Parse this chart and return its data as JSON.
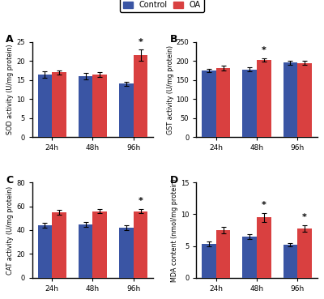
{
  "panels": [
    {
      "label": "A",
      "ylabel": "SOD activity (U/mg protein)",
      "ylim": [
        0,
        25
      ],
      "yticks": [
        0,
        5,
        10,
        15,
        20,
        25
      ],
      "groups": [
        "24h",
        "48h",
        "96h"
      ],
      "control_means": [
        16.5,
        16.0,
        14.0
      ],
      "control_errs": [
        0.8,
        0.9,
        0.5
      ],
      "oa_means": [
        17.0,
        16.5,
        21.5
      ],
      "oa_errs": [
        0.5,
        0.6,
        1.5
      ],
      "sig_oa": [
        false,
        false,
        true
      ]
    },
    {
      "label": "B",
      "ylabel": "GST activity (U/mg protein)",
      "ylim": [
        0,
        250
      ],
      "yticks": [
        0,
        50,
        100,
        150,
        200,
        250
      ],
      "groups": [
        "24h",
        "48h",
        "96h"
      ],
      "control_means": [
        175,
        178,
        196
      ],
      "control_errs": [
        5,
        5,
        5
      ],
      "oa_means": [
        182,
        203,
        195
      ],
      "oa_errs": [
        6,
        5,
        5
      ],
      "sig_oa": [
        false,
        true,
        false
      ]
    },
    {
      "label": "C",
      "ylabel": "CAT activity (U/mg protein)",
      "ylim": [
        0,
        80
      ],
      "yticks": [
        0,
        20,
        40,
        60,
        80
      ],
      "groups": [
        "24h",
        "48h",
        "96h"
      ],
      "control_means": [
        44,
        45,
        42
      ],
      "control_errs": [
        2,
        2,
        2
      ],
      "oa_means": [
        55,
        56,
        56
      ],
      "oa_errs": [
        2,
        2,
        2
      ],
      "sig_oa": [
        false,
        false,
        true
      ]
    },
    {
      "label": "D",
      "ylabel": "MDA content (nmol/mg protein)",
      "ylim": [
        0,
        15
      ],
      "yticks": [
        0,
        5,
        10,
        15
      ],
      "groups": [
        "24h",
        "48h",
        "96h"
      ],
      "control_means": [
        5.3,
        6.5,
        5.2
      ],
      "control_errs": [
        0.4,
        0.4,
        0.3
      ],
      "oa_means": [
        7.5,
        9.5,
        7.8
      ],
      "oa_errs": [
        0.5,
        0.7,
        0.5
      ],
      "sig_oa": [
        false,
        true,
        true
      ]
    }
  ],
  "control_color": "#3A55A4",
  "oa_color": "#D94040",
  "bar_width": 0.35,
  "background_color": "#ffffff",
  "legend_labels": [
    "Control",
    "OA"
  ],
  "sig_marker": "*"
}
